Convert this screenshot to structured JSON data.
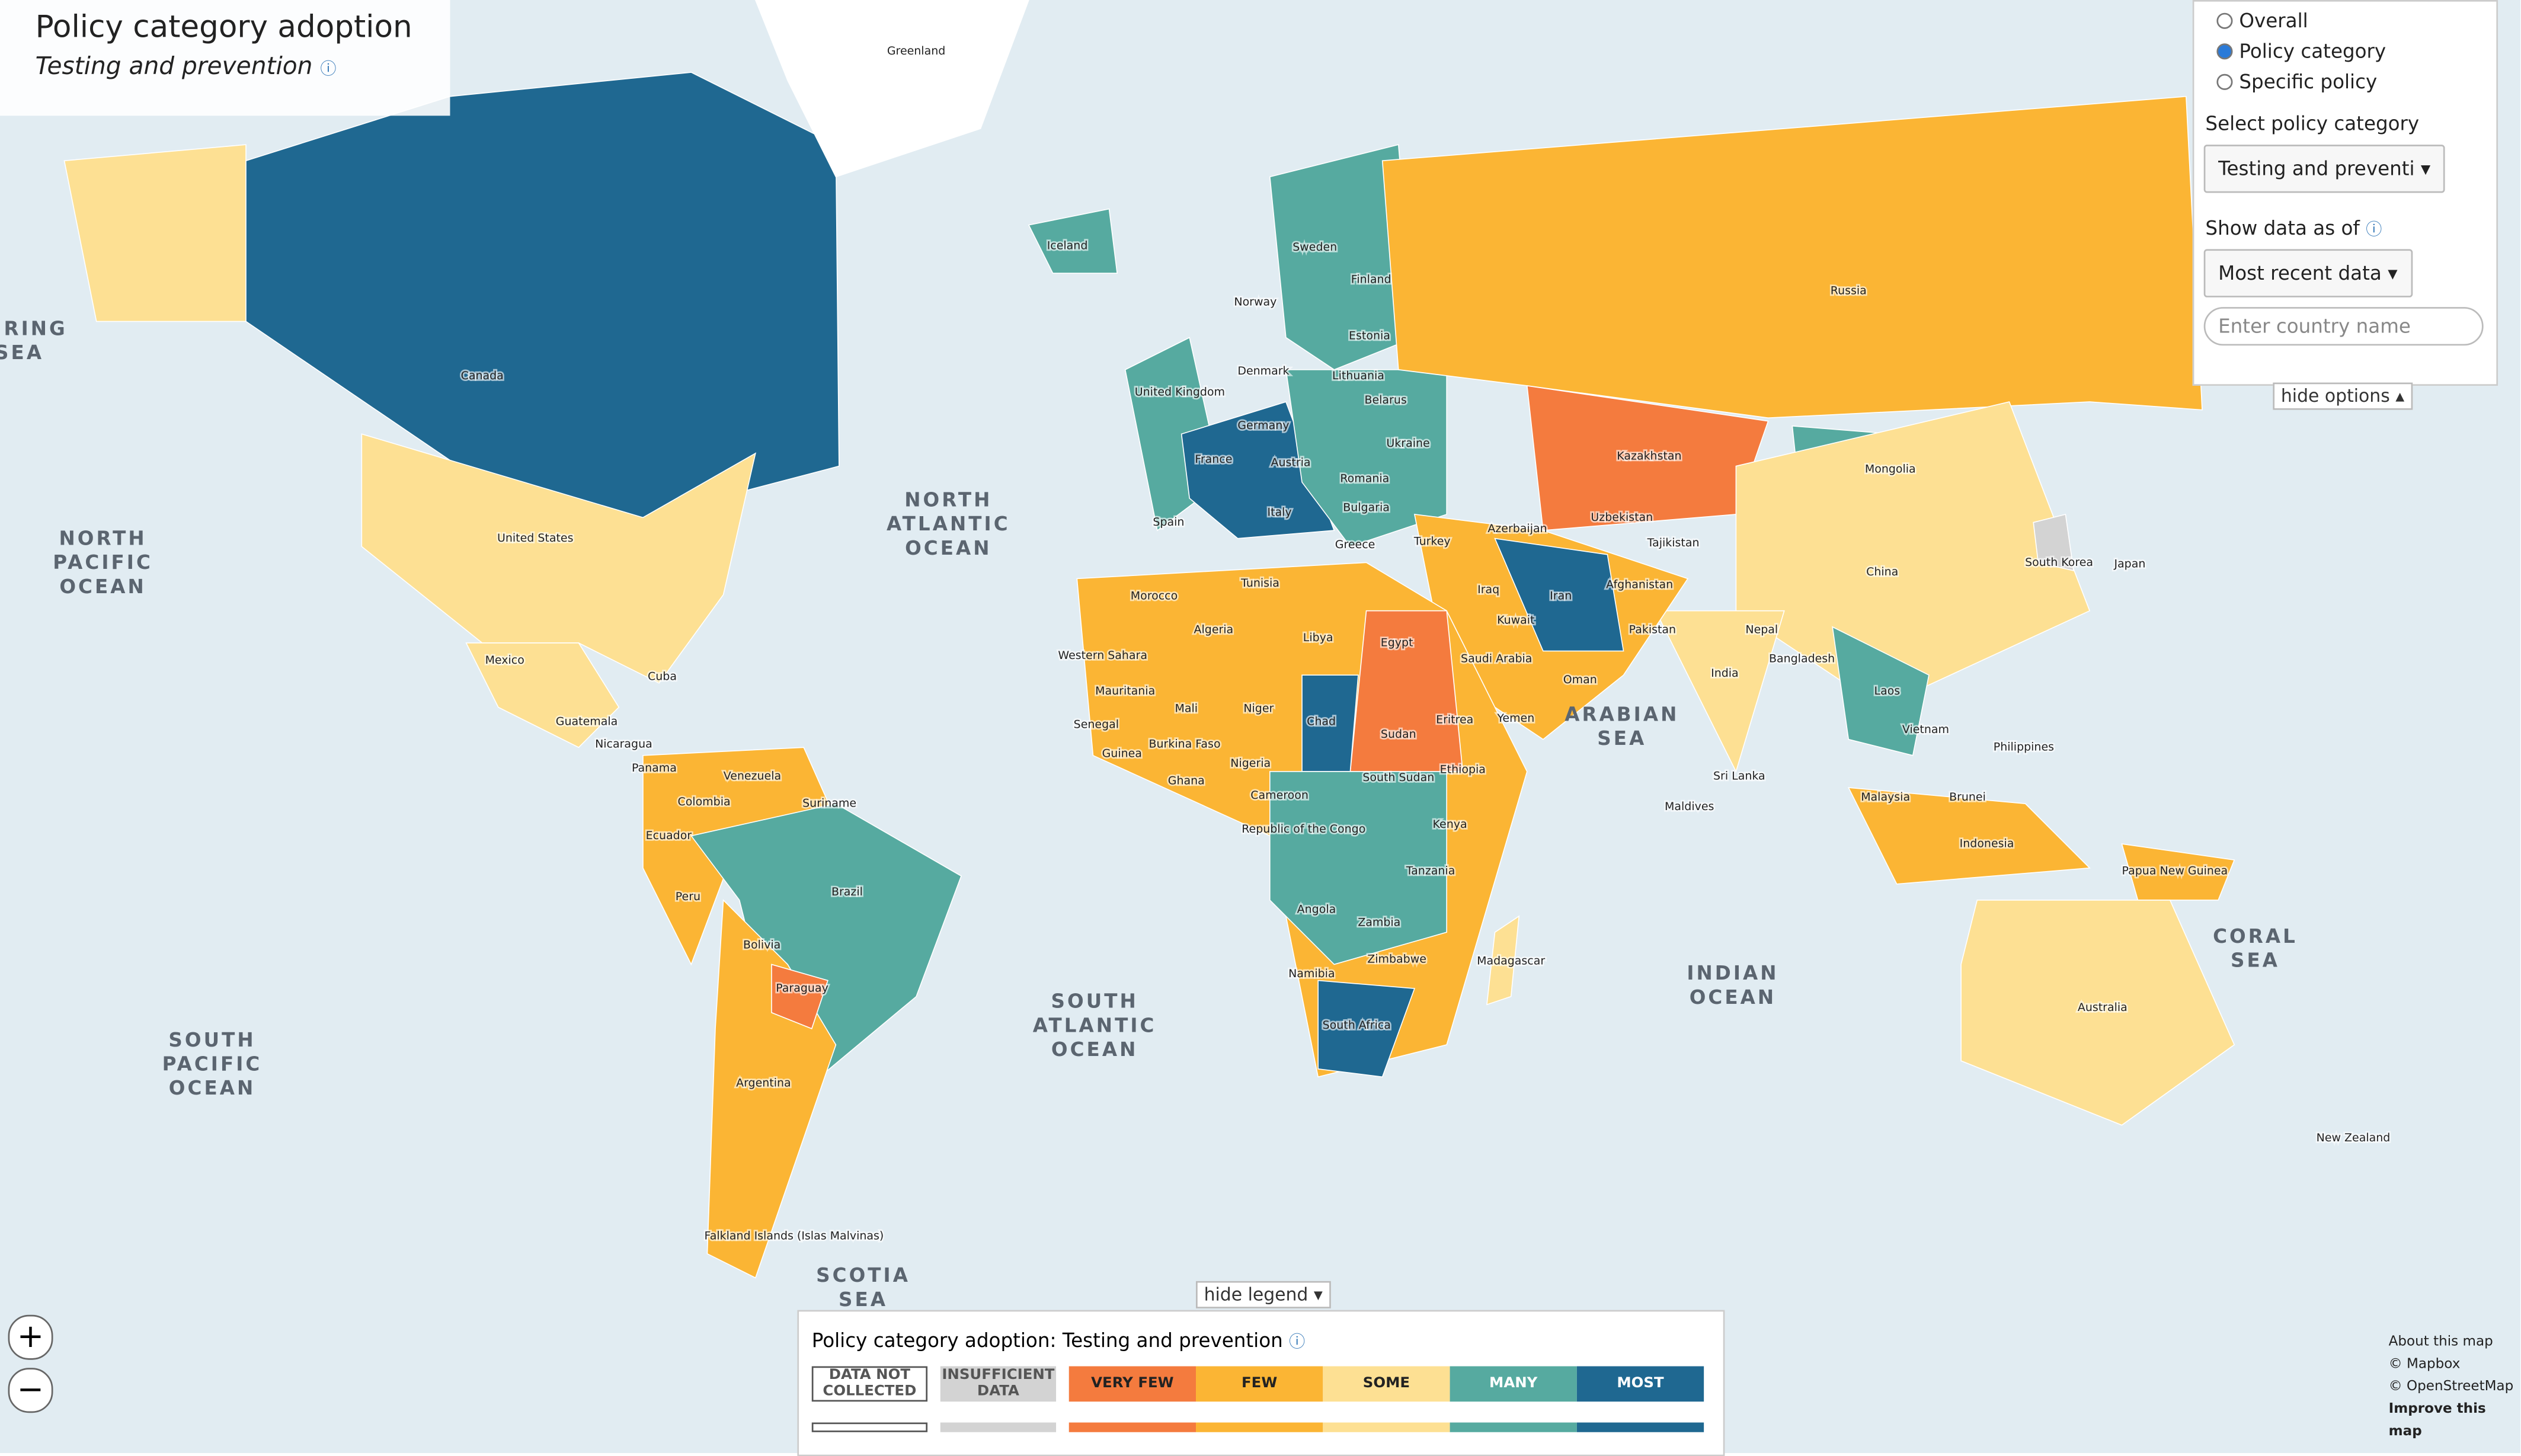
{
  "header": {
    "title": "Policy category adoption",
    "subtitle": "Testing and prevention"
  },
  "options": {
    "radios": [
      "Overall",
      "Policy category",
      "Specific policy"
    ],
    "selected": 1,
    "category_label": "Select policy category",
    "category_value": "Testing and preventi",
    "date_label": "Show data as of",
    "date_value": "Most recent data",
    "search_placeholder": "Enter country name",
    "hide_options": "hide options"
  },
  "map": {
    "countries": [
      "Canada",
      "United States",
      "Mexico",
      "Cuba",
      "Guatemala",
      "Nicaragua",
      "Panama",
      "Venezuela",
      "Colombia",
      "Suriname",
      "Ecuador",
      "Peru",
      "Brazil",
      "Bolivia",
      "Paraguay",
      "Argentina",
      "Falkland Islands (Islas Malvinas)",
      "Greenland",
      "Iceland",
      "Sweden",
      "Norway",
      "Finland",
      "Estonia",
      "United Kingdom",
      "Denmark",
      "Lithuania",
      "Belarus",
      "Germany",
      "France",
      "Austria",
      "Ukraine",
      "Romania",
      "Spain",
      "Italy",
      "Bulgaria",
      "Greece",
      "Turkey",
      "Azerbaijan",
      "Russia",
      "Kazakhstan",
      "Mongolia",
      "Uzbekistan",
      "Tajikistan",
      "Afghanistan",
      "Iran",
      "Iraq",
      "Kuwait",
      "Pakistan",
      "China",
      "South Korea",
      "Japan",
      "Nepal",
      "Bangladesh",
      "India",
      "Sri Lanka",
      "Maldives",
      "Laos",
      "Vietnam",
      "Philippines",
      "Malaysia",
      "Brunei",
      "Indonesia",
      "Papua New Guinea",
      "Australia",
      "New Zealand",
      "Tunisia",
      "Morocco",
      "Algeria",
      "Libya",
      "Egypt",
      "Western Sahara",
      "Mauritania",
      "Mali",
      "Niger",
      "Chad",
      "Sudan",
      "Eritrea",
      "Yemen",
      "Oman",
      "Saudi Arabia",
      "Senegal",
      "Guinea",
      "Burkina Faso",
      "Nigeria",
      "Ghana",
      "Cameroon",
      "South Sudan",
      "Ethiopia",
      "Kenya",
      "Republic of the Congo",
      "Tanzania",
      "Angola",
      "Zambia",
      "Zimbabwe",
      "Namibia",
      "Madagascar",
      "South Africa"
    ],
    "oceans": [
      "NORTH PACIFIC OCEAN",
      "NORTH ATLANTIC OCEAN",
      "SOUTH PACIFIC OCEAN",
      "SOUTH ATLANTIC OCEAN",
      "INDIAN OCEAN",
      "ARABIAN SEA",
      "CORAL SEA",
      "SCOTIA SEA",
      "BERING SEA"
    ]
  },
  "legend": {
    "hide": "hide legend",
    "title": "Policy category adoption: Testing and prevention",
    "items": [
      {
        "label": "DATA NOT COLLECTED",
        "color": "#ffffff"
      },
      {
        "label": "INSUFFICIENT DATA",
        "color": "#d3d3d3"
      },
      {
        "label": "VERY FEW",
        "color": "#f47b3e"
      },
      {
        "label": "FEW",
        "color": "#fbb534"
      },
      {
        "label": "SOME",
        "color": "#fde093"
      },
      {
        "label": "MANY",
        "color": "#56aaa0"
      },
      {
        "label": "MOST",
        "color": "#1f6891"
      }
    ]
  },
  "attribution": [
    "About this map",
    "© Mapbox",
    "© OpenStreetMap",
    "Improve this map"
  ]
}
